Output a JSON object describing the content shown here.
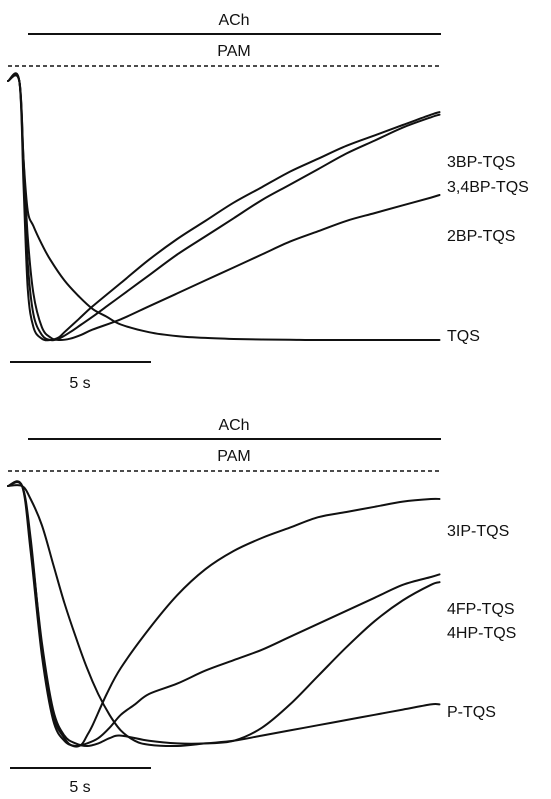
{
  "chart_data": [
    {
      "type": "line",
      "panel": "top",
      "annotations": {
        "ach": "ACh",
        "pam": "PAM"
      },
      "scale_bar": {
        "label": "5 s",
        "duration_s": 5
      },
      "series": [
        {
          "name": "3BP-TQS",
          "x": [
            0,
            0.4,
            0.55,
            0.7,
            0.9,
            1.2,
            1.5,
            1.8,
            2.0,
            2.5,
            3,
            4,
            5,
            6,
            7,
            8,
            9,
            10,
            11,
            12,
            13,
            14,
            15,
            15.3
          ],
          "y": [
            0,
            0,
            -0.4,
            -0.8,
            -0.95,
            -0.995,
            -1.0,
            -0.99,
            -0.97,
            -0.92,
            -0.87,
            -0.78,
            -0.69,
            -0.61,
            -0.54,
            -0.47,
            -0.41,
            -0.35,
            -0.3,
            -0.25,
            -0.21,
            -0.17,
            -0.13,
            -0.12
          ]
        },
        {
          "name": "3,4BP-TQS",
          "x": [
            0,
            0.4,
            0.55,
            0.7,
            0.9,
            1.2,
            1.5,
            1.8,
            2.2,
            2.6,
            3,
            3.5,
            4,
            5,
            6,
            7,
            8,
            9,
            10,
            11,
            12,
            13,
            14,
            15,
            15.3
          ],
          "y": [
            0,
            0,
            -0.35,
            -0.7,
            -0.9,
            -0.98,
            -1.0,
            -0.995,
            -0.97,
            -0.94,
            -0.91,
            -0.87,
            -0.83,
            -0.75,
            -0.67,
            -0.6,
            -0.53,
            -0.46,
            -0.4,
            -0.34,
            -0.28,
            -0.23,
            -0.18,
            -0.14,
            -0.13
          ]
        },
        {
          "name": "2BP-TQS",
          "x": [
            0,
            0.4,
            0.55,
            0.7,
            0.9,
            1.2,
            1.5,
            1.8,
            2.2,
            2.6,
            3,
            4,
            5,
            6,
            7,
            8,
            9,
            10,
            11,
            12,
            13,
            14,
            15,
            15.3
          ],
          "y": [
            0,
            0,
            -0.3,
            -0.6,
            -0.82,
            -0.95,
            -0.99,
            -1.0,
            -0.995,
            -0.98,
            -0.96,
            -0.92,
            -0.87,
            -0.82,
            -0.77,
            -0.72,
            -0.67,
            -0.62,
            -0.58,
            -0.54,
            -0.51,
            -0.48,
            -0.45,
            -0.44
          ]
        },
        {
          "name": "TQS",
          "x": [
            0,
            0.4,
            0.55,
            0.7,
            0.9,
            1.2,
            1.5,
            2.0,
            2.5,
            3,
            3.5,
            4,
            5,
            6,
            7,
            8,
            9,
            10,
            11,
            12,
            13,
            14,
            15,
            15.3
          ],
          "y": [
            0,
            0,
            -0.3,
            -0.5,
            -0.56,
            -0.63,
            -0.69,
            -0.77,
            -0.83,
            -0.88,
            -0.91,
            -0.94,
            -0.97,
            -0.985,
            -0.992,
            -0.996,
            -0.998,
            -0.999,
            -1.0,
            -1.0,
            -1.0,
            -1.0,
            -1.0,
            -1.0
          ]
        }
      ]
    },
    {
      "type": "line",
      "panel": "bottom",
      "annotations": {
        "ach": "ACh",
        "pam": "PAM"
      },
      "scale_bar": {
        "label": "5 s",
        "duration_s": 5
      },
      "series": [
        {
          "name": "3IP-TQS",
          "x": [
            0,
            0.5,
            0.8,
            1.2,
            1.6,
            2.0,
            2.3,
            2.6,
            2.8,
            3.0,
            3.5,
            4,
            5,
            6,
            7,
            8,
            9,
            10,
            11,
            12,
            13,
            14,
            15,
            15.3
          ],
          "y": [
            0,
            0,
            -0.2,
            -0.62,
            -0.88,
            -0.97,
            -1.0,
            -0.995,
            -0.96,
            -0.92,
            -0.8,
            -0.7,
            -0.55,
            -0.42,
            -0.32,
            -0.25,
            -0.2,
            -0.16,
            -0.12,
            -0.1,
            -0.08,
            -0.06,
            -0.05,
            -0.05
          ]
        },
        {
          "name": "4FP-TQS",
          "x": [
            0,
            0.5,
            0.8,
            1.2,
            1.6,
            2.0,
            2.4,
            2.8,
            3.2,
            3.6,
            4,
            4.5,
            5,
            6,
            7,
            8,
            9,
            10,
            11,
            12,
            13,
            14,
            15,
            15.3
          ],
          "y": [
            0,
            0,
            -0.25,
            -0.65,
            -0.9,
            -0.98,
            -1.0,
            -0.99,
            -0.97,
            -0.93,
            -0.88,
            -0.84,
            -0.8,
            -0.76,
            -0.71,
            -0.67,
            -0.63,
            -0.58,
            -0.53,
            -0.48,
            -0.43,
            -0.38,
            -0.35,
            -0.34
          ]
        },
        {
          "name": "4HP-TQS",
          "x": [
            0,
            0.5,
            0.8,
            1.2,
            1.6,
            2.0,
            2.4,
            2.8,
            3.2,
            3.6,
            4,
            5,
            6,
            7,
            8,
            9,
            10,
            11,
            12,
            13,
            14,
            15,
            15.3
          ],
          "y": [
            0,
            0,
            -0.22,
            -0.6,
            -0.86,
            -0.96,
            -0.99,
            -1.0,
            -0.99,
            -0.97,
            -0.96,
            -0.98,
            -0.99,
            -0.99,
            -0.98,
            -0.93,
            -0.84,
            -0.73,
            -0.62,
            -0.52,
            -0.44,
            -0.38,
            -0.37
          ]
        },
        {
          "name": "P-TQS",
          "x": [
            0,
            0.5,
            0.8,
            1.2,
            1.6,
            2.0,
            2.4,
            2.8,
            3.2,
            3.6,
            4,
            4.5,
            5,
            6,
            7,
            8,
            9,
            10,
            11,
            12,
            13,
            14,
            15,
            15.3
          ],
          "y": [
            0,
            0,
            -0.05,
            -0.15,
            -0.3,
            -0.45,
            -0.58,
            -0.7,
            -0.8,
            -0.88,
            -0.94,
            -0.98,
            -0.995,
            -1.0,
            -0.99,
            -0.98,
            -0.96,
            -0.94,
            -0.92,
            -0.9,
            -0.88,
            -0.86,
            -0.84,
            -0.84
          ]
        }
      ]
    }
  ]
}
